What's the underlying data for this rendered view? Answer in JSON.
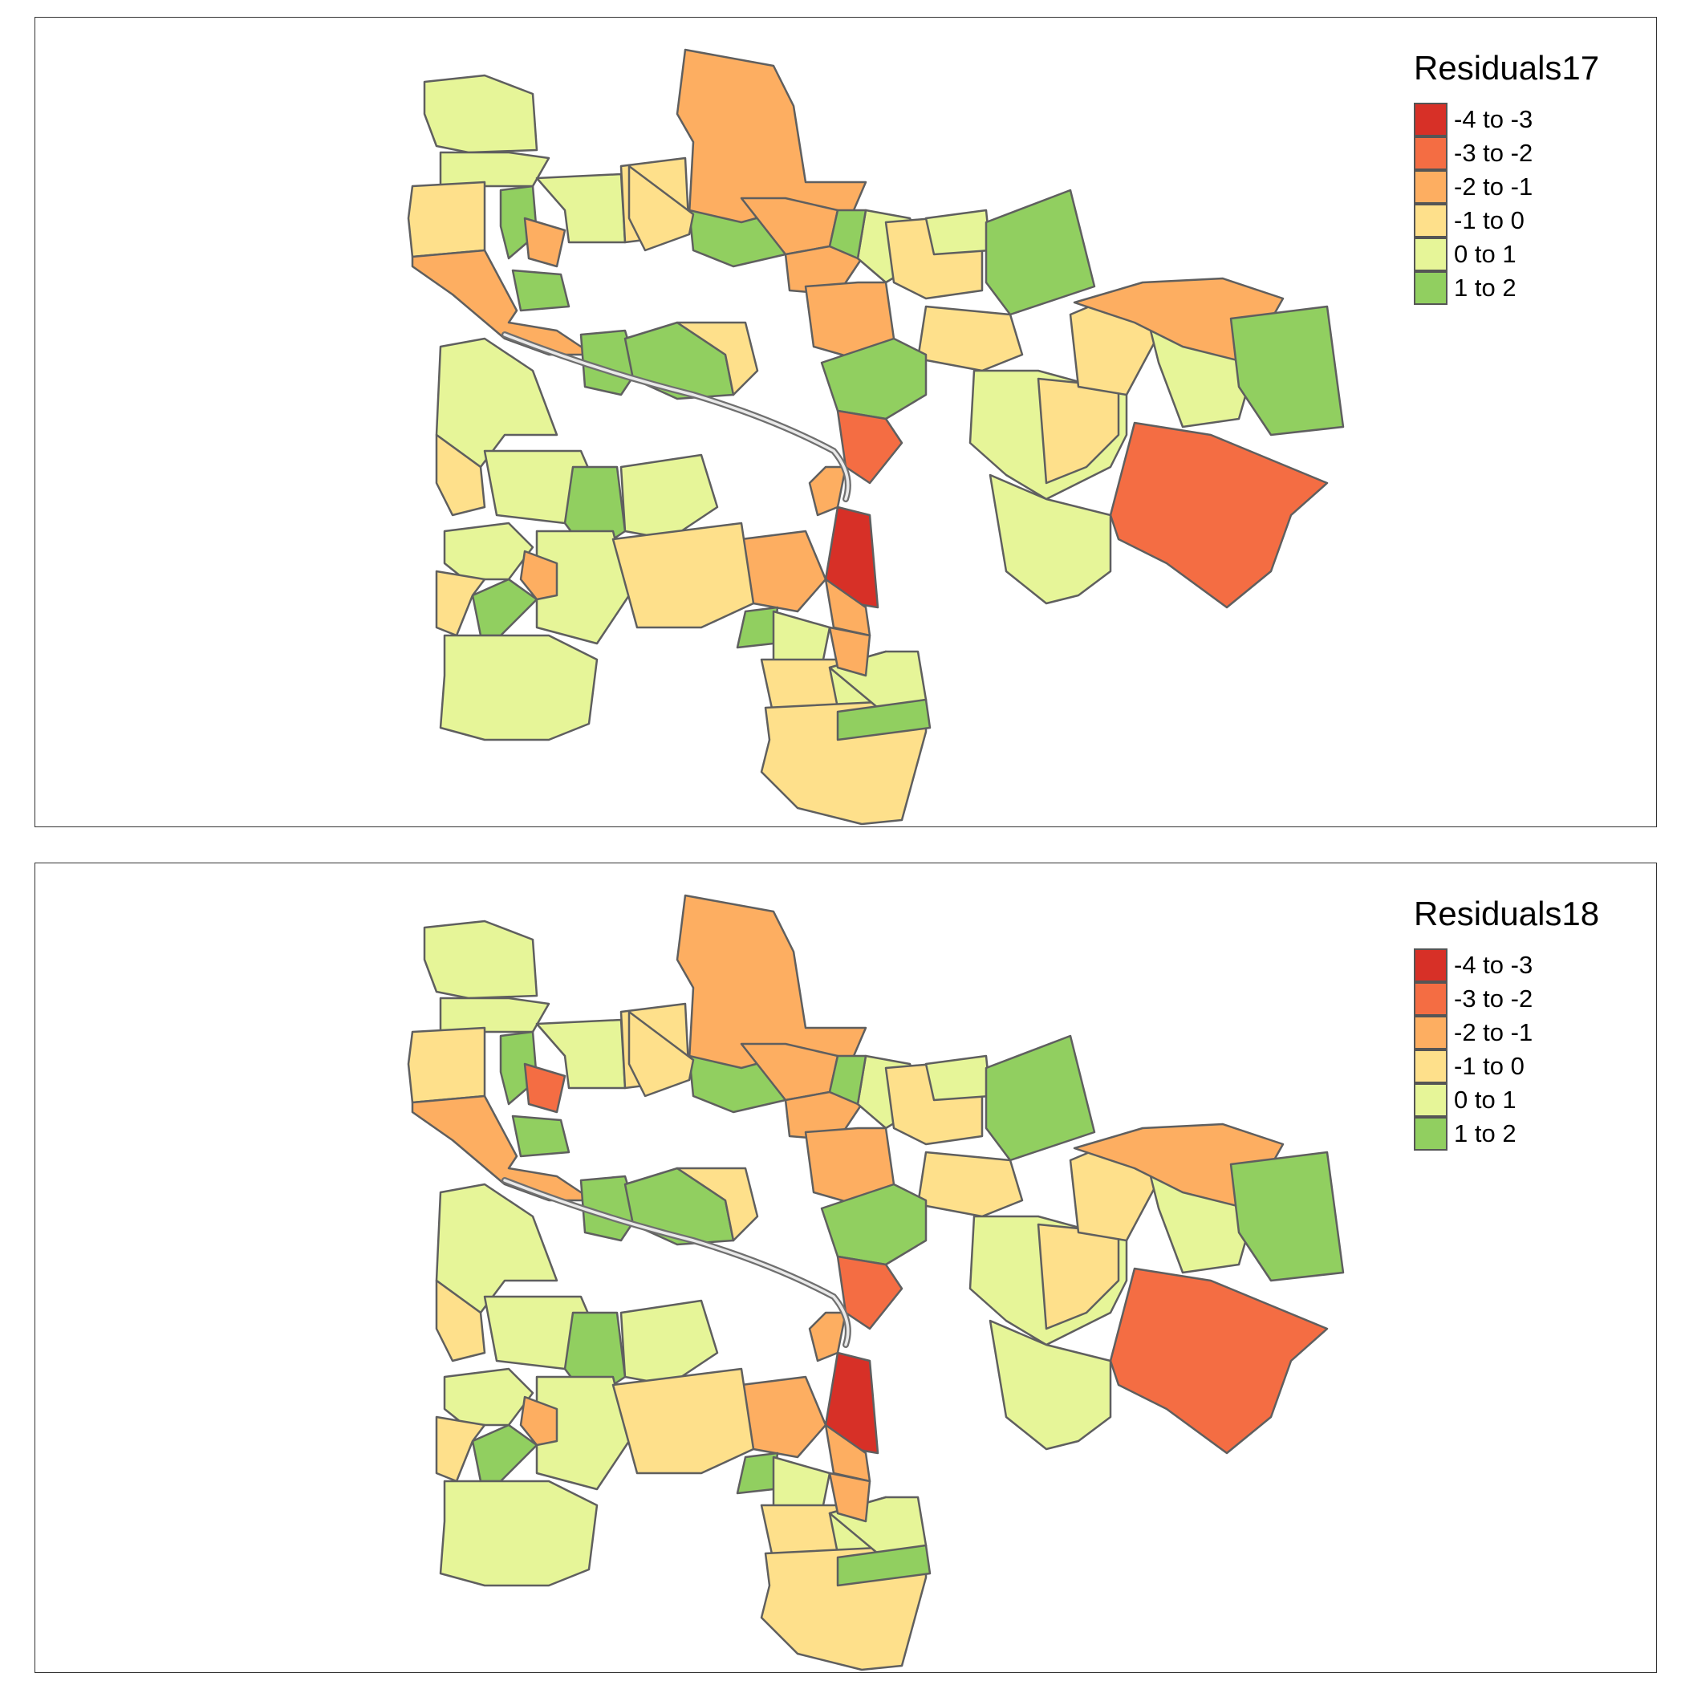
{
  "colors": {
    "-4 to -3": "#d73027",
    "-3 to -2": "#f46d43",
    "-2 to -1": "#fdae61",
    "-1 to 0": "#fee08b",
    "0 to 1": "#e6f598",
    "1 to 2": "#91cf60"
  },
  "legend": {
    "classes": [
      "-4 to -3",
      "-3 to -2",
      "-2 to -1",
      "-1 to 0",
      "0 to 1",
      "1 to 2"
    ]
  },
  "maps": [
    {
      "legend_title": "Residuals17",
      "overrides": {}
    },
    {
      "legend_title": "Residuals18",
      "overrides": {
        "r6": "-3 to -2"
      }
    }
  ],
  "regions": [
    {
      "id": "r1",
      "cls": "-2 to -1"
    },
    {
      "id": "r2",
      "cls": "0 to 1"
    },
    {
      "id": "r3",
      "cls": "0 to 1"
    },
    {
      "id": "r4",
      "cls": "-1 to 0"
    },
    {
      "id": "r5",
      "cls": "1 to 2"
    },
    {
      "id": "r6",
      "cls": "-2 to -1"
    },
    {
      "id": "r7",
      "cls": "0 to 1"
    },
    {
      "id": "r8",
      "cls": "-1 to 0"
    },
    {
      "id": "r9",
      "cls": "1 to 2"
    },
    {
      "id": "r10",
      "cls": "-2 to -1"
    },
    {
      "id": "r11",
      "cls": "1 to 2"
    },
    {
      "id": "r12",
      "cls": "-2 to -1"
    },
    {
      "id": "r13",
      "cls": "-2 to -1"
    },
    {
      "id": "r14",
      "cls": "-1 to 0"
    },
    {
      "id": "r15",
      "cls": "0 to 1"
    },
    {
      "id": "r16",
      "cls": "1 to 2"
    },
    {
      "id": "r17",
      "cls": "-2 to -1"
    },
    {
      "id": "r18",
      "cls": "-1 to 0"
    },
    {
      "id": "r19",
      "cls": "0 to 1"
    },
    {
      "id": "r20",
      "cls": "1 to 2"
    },
    {
      "id": "r21",
      "cls": "-1 to 0"
    },
    {
      "id": "r22",
      "cls": "0 to 1"
    },
    {
      "id": "r23",
      "cls": "1 to 2"
    },
    {
      "id": "r24",
      "cls": "1 to 2"
    },
    {
      "id": "r25",
      "cls": "-1 to 0"
    },
    {
      "id": "r26",
      "cls": "1 to 2"
    },
    {
      "id": "r27",
      "cls": "-3 to -2"
    },
    {
      "id": "r28",
      "cls": "-2 to -1"
    },
    {
      "id": "r29",
      "cls": "-4 to -3"
    },
    {
      "id": "r30",
      "cls": "-2 to -1"
    },
    {
      "id": "r31",
      "cls": "-1 to 0"
    },
    {
      "id": "r32",
      "cls": "0 to 1"
    },
    {
      "id": "r33",
      "cls": "-3 to -2"
    },
    {
      "id": "r34",
      "cls": "-2 to -1"
    },
    {
      "id": "r35",
      "cls": "1 to 2"
    },
    {
      "id": "r36",
      "cls": "0 to 1"
    },
    {
      "id": "r37",
      "cls": "1 to 2"
    },
    {
      "id": "r38",
      "cls": "0 to 1"
    },
    {
      "id": "r39",
      "cls": "-1 to 0"
    },
    {
      "id": "r40",
      "cls": "0 to 1"
    },
    {
      "id": "r41",
      "cls": "-2 to -1"
    },
    {
      "id": "r42",
      "cls": "-1 to 0"
    },
    {
      "id": "r43",
      "cls": "1 to 2"
    },
    {
      "id": "r44",
      "cls": "0 to 1"
    },
    {
      "id": "r45",
      "cls": "1 to 2"
    },
    {
      "id": "r46",
      "cls": "0 to 1"
    },
    {
      "id": "r47",
      "cls": "-1 to 0"
    },
    {
      "id": "r48",
      "cls": "0 to 1"
    },
    {
      "id": "r49",
      "cls": "-1 to 0"
    },
    {
      "id": "r50",
      "cls": "0 to 1"
    },
    {
      "id": "r51",
      "cls": "-2 to -1"
    },
    {
      "id": "r52",
      "cls": "1 to 2"
    },
    {
      "id": "r53",
      "cls": "-3 to -2"
    },
    {
      "id": "r54",
      "cls": "0 to 1"
    },
    {
      "id": "r55",
      "cls": "-1 to 0"
    },
    {
      "id": "r56",
      "cls": "0 to 1"
    },
    {
      "id": "r57",
      "cls": "-1 to 0"
    },
    {
      "id": "r58",
      "cls": "0 to 1"
    },
    {
      "id": "r59",
      "cls": "-2 to -1"
    },
    {
      "id": "r60",
      "cls": "1 to 2"
    }
  ]
}
